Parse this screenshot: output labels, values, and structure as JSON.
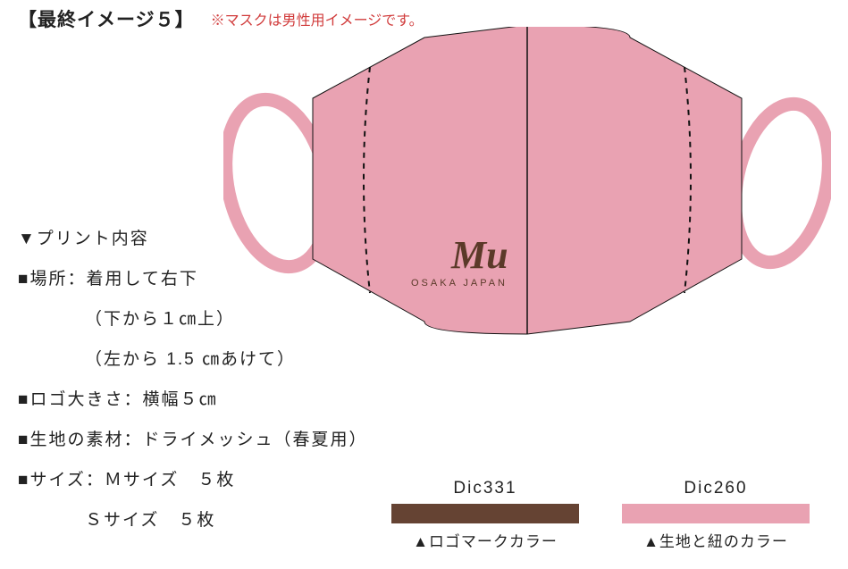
{
  "header": {
    "title": "【最終イメージ５】",
    "note": "※マスクは男性用イメージです。"
  },
  "mask": {
    "fabric_color": "#e9a2b2",
    "strap_color": "#e9a2b2",
    "outline_color": "#111111",
    "seam_color": "#111111",
    "seam_dash": "5 5",
    "logo_text_main": "Mu",
    "logo_text_sub": "OSAKA JAPAN",
    "logo_color": "#5b3a29",
    "outline_width": 1.0,
    "center_line_width": 1.5,
    "seam_width": 2.0
  },
  "specs": {
    "heading": "▼プリント内容",
    "lines": [
      {
        "text": "■場所：着用して右下",
        "indent": false
      },
      {
        "text": "（下から１㎝上）",
        "indent": true
      },
      {
        "text": "（左から 1.5 ㎝あけて）",
        "indent": true
      },
      {
        "text": "■ロゴ大きさ：横幅５㎝",
        "indent": false
      },
      {
        "text": "■生地の素材：ドライメッシュ（春夏用）",
        "indent": false
      },
      {
        "text": "■サイズ：Ｍサイズ　５枚",
        "indent": false
      },
      {
        "text": "Ｓサイズ　５枚",
        "indent": true
      }
    ]
  },
  "swatches": [
    {
      "code": "Dic331",
      "label": "▲ロゴマークカラー",
      "color": "#654333"
    },
    {
      "code": "Dic260",
      "label": "▲生地と紐のカラー",
      "color": "#e9a2b2"
    }
  ]
}
